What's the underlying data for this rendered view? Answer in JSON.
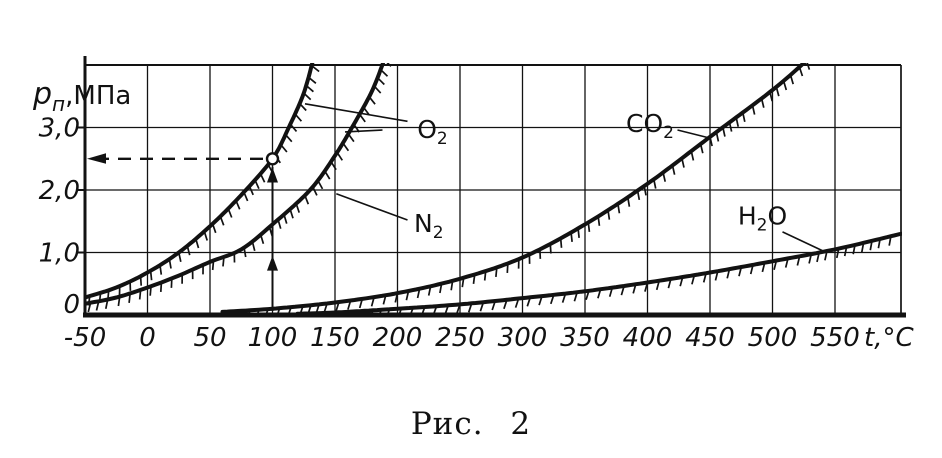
{
  "figure": {
    "caption": "Рис. 2",
    "background": "#ffffff",
    "ink": "#121212"
  },
  "chart_data": {
    "type": "line",
    "title": "",
    "xlabel": "t,°C",
    "ylabel_parts": [
      [
        "p",
        "it"
      ],
      [
        "п",
        "sub"
      ],
      [
        ",МПа",
        "norm"
      ]
    ],
    "x_tick_values": [
      -50,
      0,
      50,
      100,
      150,
      200,
      250,
      300,
      350,
      400,
      450,
      500,
      550
    ],
    "x_tick_labels": [
      "-50",
      "0",
      "50",
      "100",
      "150",
      "200",
      "250",
      "300",
      "350",
      "400",
      "450",
      "500",
      "550"
    ],
    "y_tick_values": [
      0,
      1,
      2,
      3
    ],
    "y_tick_labels": [
      "0",
      "1,0",
      "2,0",
      "3,0"
    ],
    "xlim": [
      -50,
      603
    ],
    "ylim": [
      0,
      4
    ],
    "grid": true,
    "legend_position": "inline-labels",
    "series": [
      {
        "id": "o2",
        "label_parts": [
          [
            "O",
            0
          ],
          [
            "2",
            1
          ]
        ],
        "label_anchor": [
          228,
          2.96
        ],
        "leaders": [
          [
            [
              208,
              3.1
            ],
            [
              126,
              3.38
            ]
          ],
          [
            [
              188,
              2.96
            ],
            [
              158,
              2.93
            ]
          ]
        ],
        "points": [
          [
            -50,
            0.28
          ],
          [
            -25,
            0.44
          ],
          [
            0,
            0.68
          ],
          [
            25,
            1.0
          ],
          [
            50,
            1.42
          ],
          [
            75,
            1.92
          ],
          [
            100,
            2.5
          ],
          [
            113,
            3.0
          ],
          [
            125,
            3.55
          ],
          [
            133,
            4.12
          ]
        ]
      },
      {
        "id": "n2",
        "label_parts": [
          [
            "N",
            0
          ],
          [
            "2",
            1
          ]
        ],
        "label_anchor": [
          225,
          1.46
        ],
        "leaders": [
          [
            [
              208,
              1.52
            ],
            [
              151,
              1.94
            ]
          ]
        ],
        "points": [
          [
            -50,
            0.18
          ],
          [
            -25,
            0.28
          ],
          [
            0,
            0.44
          ],
          [
            25,
            0.63
          ],
          [
            50,
            0.85
          ],
          [
            75,
            1.05
          ],
          [
            100,
            1.45
          ],
          [
            130,
            2.0
          ],
          [
            150,
            2.55
          ],
          [
            165,
            3.05
          ],
          [
            180,
            3.6
          ],
          [
            190,
            4.12
          ]
        ]
      },
      {
        "id": "co2",
        "label_parts": [
          [
            "CO",
            0
          ],
          [
            "2",
            1
          ]
        ],
        "label_anchor": [
          402,
          3.06
        ],
        "leaders": [
          [
            [
              424,
              2.96
            ],
            [
              450,
              2.83
            ]
          ]
        ],
        "points": [
          [
            60,
            0.05
          ],
          [
            100,
            0.1
          ],
          [
            150,
            0.2
          ],
          [
            200,
            0.35
          ],
          [
            250,
            0.58
          ],
          [
            300,
            0.92
          ],
          [
            350,
            1.45
          ],
          [
            400,
            2.1
          ],
          [
            450,
            2.85
          ],
          [
            500,
            3.6
          ],
          [
            530,
            4.12
          ]
        ]
      },
      {
        "id": "h2o",
        "label_parts": [
          [
            "H",
            0
          ],
          [
            "2",
            1
          ],
          [
            "O",
            0
          ]
        ],
        "label_anchor": [
          492,
          1.58
        ],
        "leaders": [
          [
            [
              508,
              1.33
            ],
            [
              542,
              1.01
            ]
          ]
        ],
        "points": [
          [
            120,
            0.02
          ],
          [
            150,
            0.04
          ],
          [
            200,
            0.1
          ],
          [
            250,
            0.17
          ],
          [
            300,
            0.27
          ],
          [
            350,
            0.38
          ],
          [
            400,
            0.52
          ],
          [
            450,
            0.68
          ],
          [
            500,
            0.86
          ],
          [
            550,
            1.05
          ],
          [
            603,
            1.3
          ]
        ]
      }
    ],
    "annotation": {
      "marker": "open-circle",
      "point_t": 100,
      "point_p": 2.5,
      "dashed_arrow": "horizontal-to-pressure-axis",
      "vertical_arrowheads_p": [
        2.36,
        0.95
      ]
    }
  }
}
